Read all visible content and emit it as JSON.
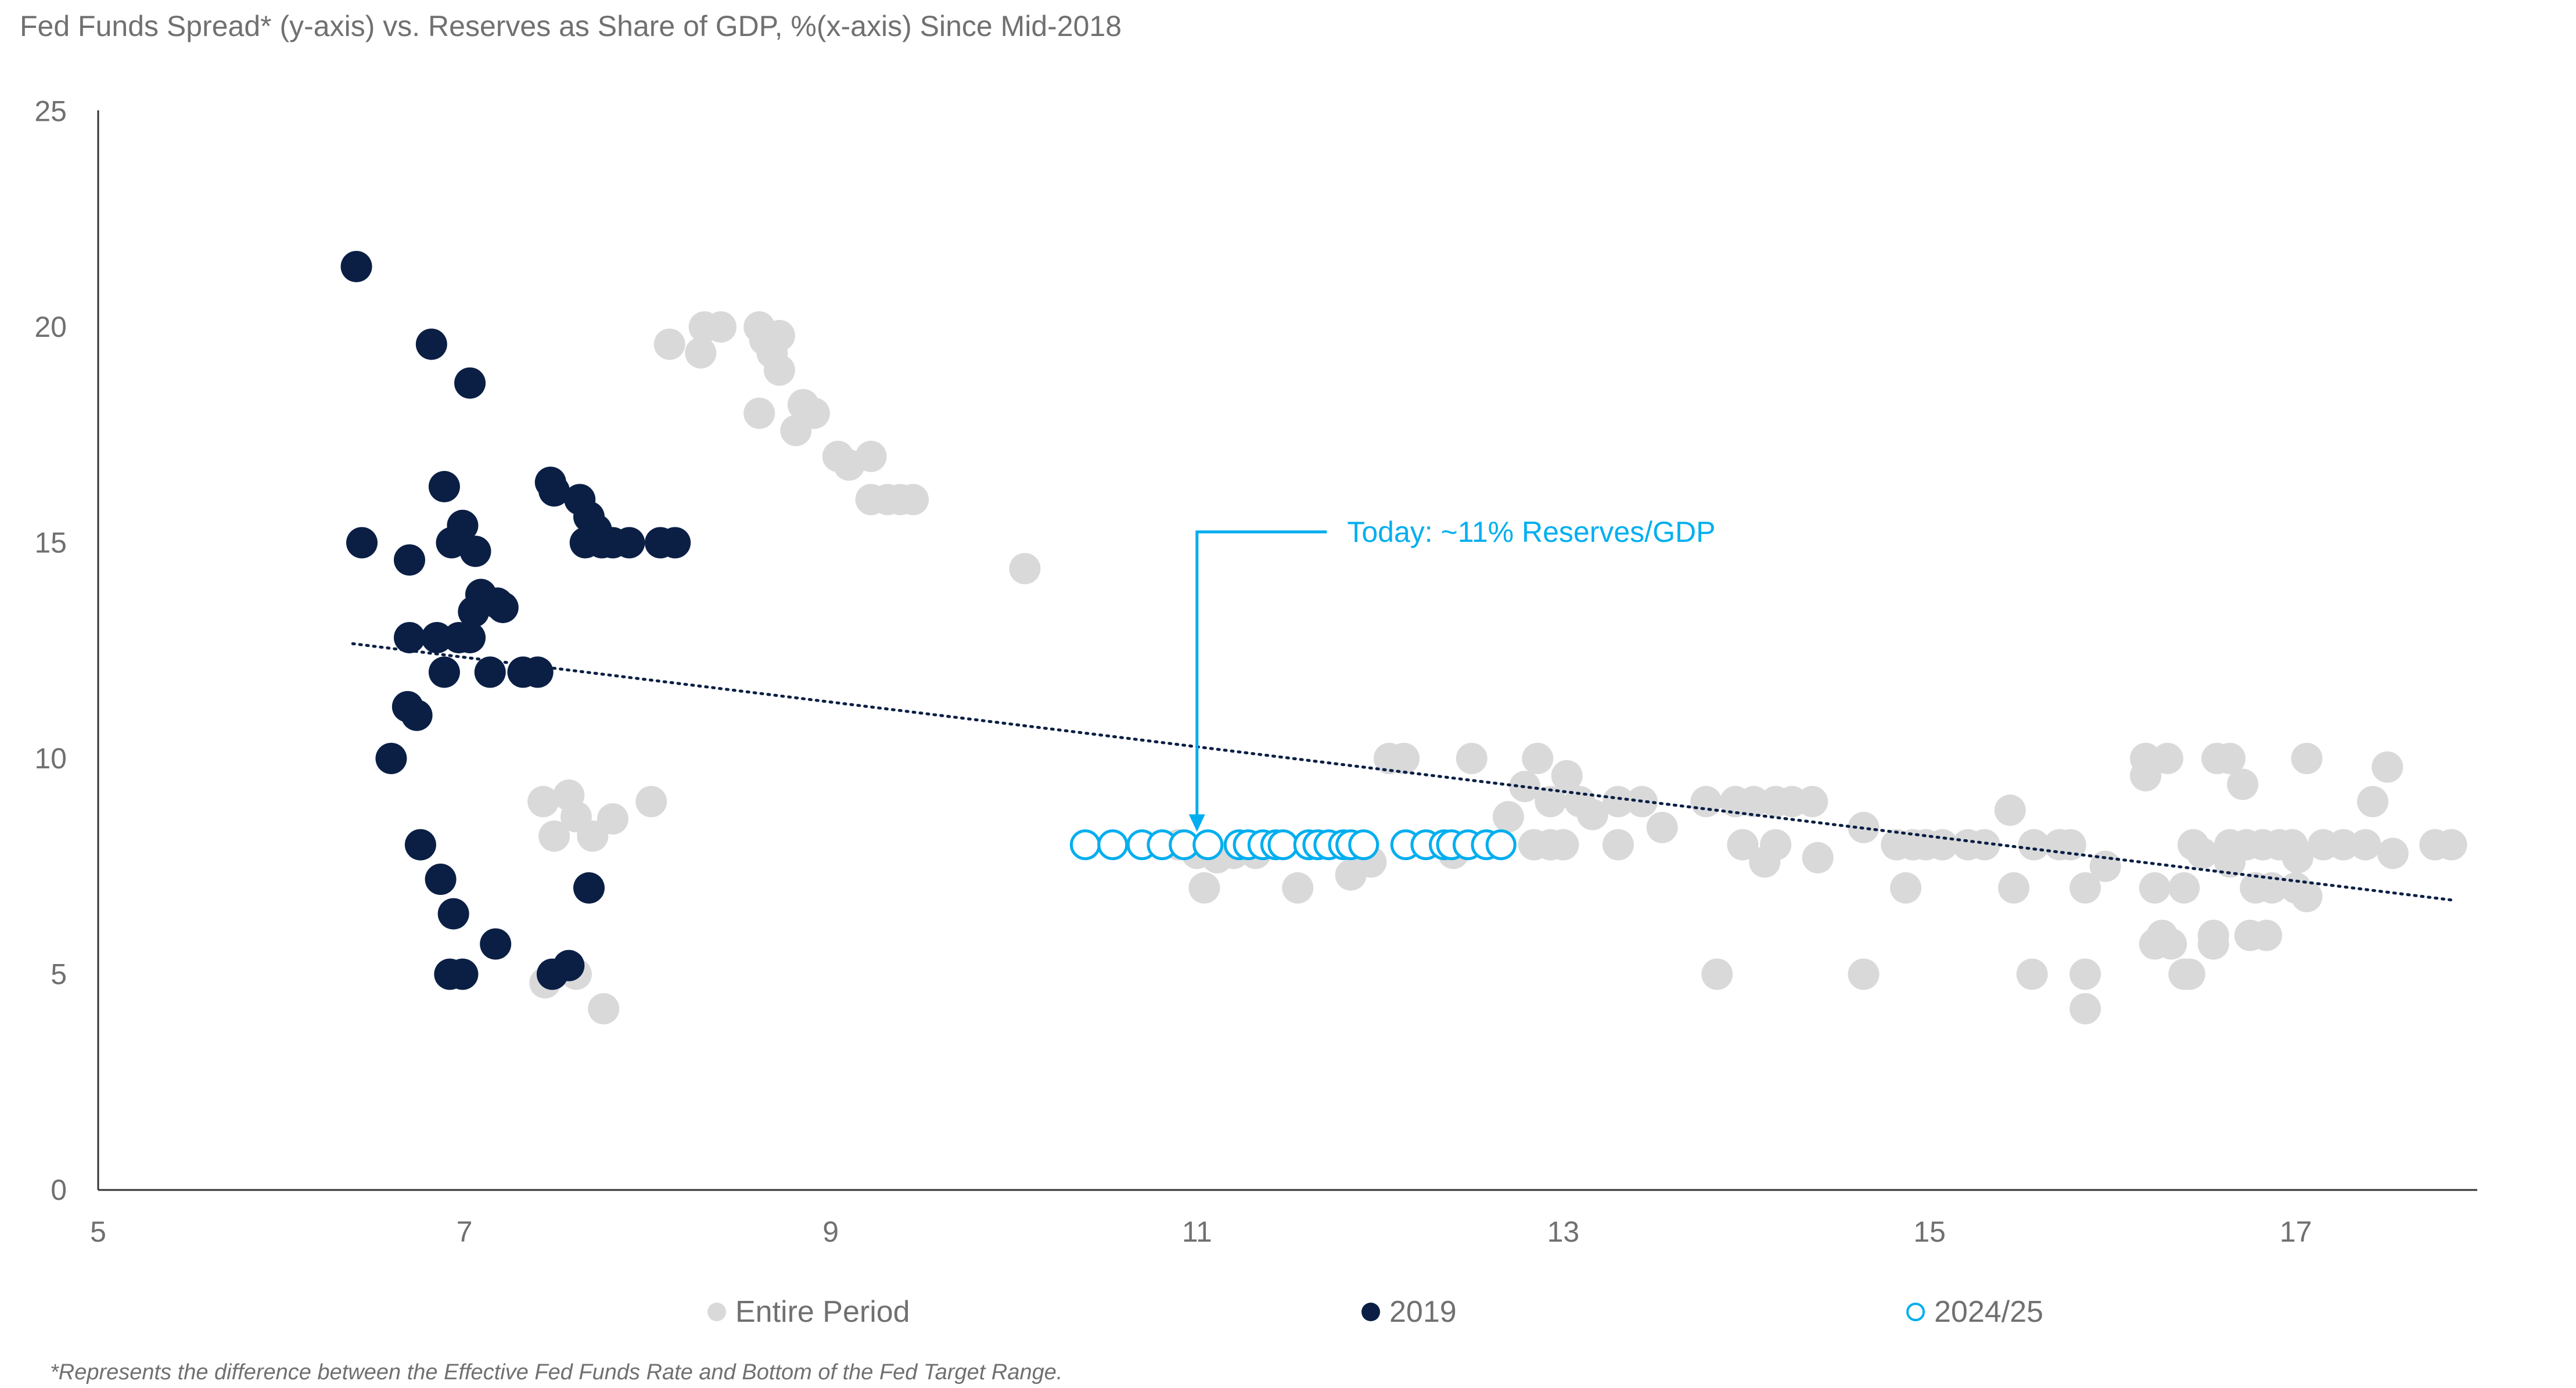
{
  "chart_data": {
    "type": "scatter",
    "title": "Fed Funds Spread* (y-axis) vs. Reserves as Share of GDP, %(x-axis) Since Mid-2018",
    "xlabel": "Reserves as Share of GDP, %",
    "ylabel": "Fed Funds Spread*",
    "xlim": [
      5,
      18
    ],
    "ylim": [
      0,
      25
    ],
    "x_ticks": [
      "5",
      "7",
      "9",
      "11",
      "13",
      "15",
      "17"
    ],
    "x_tick_values": [
      5,
      7,
      9,
      11,
      13,
      15,
      17
    ],
    "y_ticks": [
      "0",
      "5",
      "10",
      "15",
      "20",
      "25"
    ],
    "y_tick_values": [
      0,
      5,
      10,
      15,
      20,
      25
    ],
    "grid": false,
    "legend_position": "bottom",
    "colors": {
      "entire": "#d9d9d9",
      "y2019": "#0b1f45",
      "y2024": "#00aeef",
      "trend": "#0b1f45"
    },
    "series": [
      {
        "name": "Entire Period",
        "style": "filled",
        "points": [
          [
            8.12,
            19.6
          ],
          [
            8.29,
            19.4
          ],
          [
            8.31,
            20.0
          ],
          [
            8.4,
            20.0
          ],
          [
            8.61,
            20.0
          ],
          [
            8.64,
            19.7
          ],
          [
            8.72,
            19.8
          ],
          [
            8.68,
            19.4
          ],
          [
            8.72,
            19.0
          ],
          [
            8.61,
            18.0
          ],
          [
            8.85,
            18.2
          ],
          [
            8.91,
            18.0
          ],
          [
            8.81,
            17.6
          ],
          [
            9.04,
            17.0
          ],
          [
            9.1,
            16.8
          ],
          [
            9.22,
            17.0
          ],
          [
            9.22,
            16.0
          ],
          [
            9.31,
            16.0
          ],
          [
            9.38,
            16.0
          ],
          [
            9.45,
            16.0
          ],
          [
            10.06,
            14.4
          ],
          [
            7.9,
            15.0
          ],
          [
            7.43,
            9.0
          ],
          [
            7.57,
            9.15
          ],
          [
            7.61,
            8.65
          ],
          [
            7.49,
            8.2
          ],
          [
            7.7,
            8.2
          ],
          [
            7.81,
            8.6
          ],
          [
            8.02,
            9.0
          ],
          [
            7.44,
            4.8
          ],
          [
            7.61,
            5.0
          ],
          [
            7.76,
            4.2
          ],
          [
            10.9,
            8.0
          ],
          [
            11.0,
            7.8
          ],
          [
            11.04,
            7.0
          ],
          [
            11.11,
            7.7
          ],
          [
            11.2,
            7.8
          ],
          [
            11.32,
            7.8
          ],
          [
            11.55,
            7.0
          ],
          [
            11.84,
            7.3
          ],
          [
            11.95,
            7.6
          ],
          [
            12.05,
            10.0
          ],
          [
            12.13,
            10.0
          ],
          [
            12.4,
            7.8
          ],
          [
            12.5,
            10.0
          ],
          [
            12.7,
            8.65
          ],
          [
            12.79,
            9.35
          ],
          [
            12.86,
            10.0
          ],
          [
            12.93,
            9.0
          ],
          [
            13.02,
            9.6
          ],
          [
            13.09,
            9.0
          ],
          [
            13.16,
            8.7
          ],
          [
            13.3,
            9.0
          ],
          [
            13.43,
            9.0
          ],
          [
            13.54,
            8.4
          ],
          [
            12.84,
            8.0
          ],
          [
            12.93,
            8.0
          ],
          [
            13.0,
            8.0
          ],
          [
            13.3,
            8.0
          ],
          [
            13.78,
            9.0
          ],
          [
            13.94,
            9.0
          ],
          [
            14.04,
            9.0
          ],
          [
            14.16,
            9.0
          ],
          [
            14.25,
            9.0
          ],
          [
            14.36,
            9.0
          ],
          [
            13.84,
            5.0
          ],
          [
            13.98,
            8.0
          ],
          [
            14.1,
            7.6
          ],
          [
            14.16,
            8.0
          ],
          [
            14.39,
            7.7
          ],
          [
            14.64,
            8.4
          ],
          [
            14.64,
            5.0
          ],
          [
            14.82,
            8.0
          ],
          [
            14.91,
            8.0
          ],
          [
            14.98,
            8.0
          ],
          [
            15.07,
            8.0
          ],
          [
            15.21,
            8.0
          ],
          [
            15.3,
            8.0
          ],
          [
            14.87,
            7.0
          ],
          [
            15.44,
            8.8
          ],
          [
            15.46,
            7.0
          ],
          [
            15.57,
            8.0
          ],
          [
            15.71,
            8.0
          ],
          [
            15.77,
            8.0
          ],
          [
            15.56,
            5.0
          ],
          [
            15.85,
            7.0
          ],
          [
            15.85,
            5.0
          ],
          [
            15.85,
            4.2
          ],
          [
            15.96,
            7.5
          ],
          [
            16.18,
            10.0
          ],
          [
            16.3,
            10.0
          ],
          [
            16.18,
            9.6
          ],
          [
            16.23,
            7.0
          ],
          [
            16.27,
            5.9
          ],
          [
            16.23,
            5.7
          ],
          [
            16.32,
            5.7
          ],
          [
            16.39,
            7.0
          ],
          [
            16.39,
            5.0
          ],
          [
            16.42,
            5.0
          ],
          [
            16.44,
            8.0
          ],
          [
            16.49,
            7.8
          ],
          [
            16.55,
            5.9
          ],
          [
            16.55,
            5.7
          ],
          [
            16.57,
            10.0
          ],
          [
            16.64,
            10.0
          ],
          [
            16.64,
            8.0
          ],
          [
            16.73,
            8.0
          ],
          [
            16.82,
            8.0
          ],
          [
            16.91,
            8.0
          ],
          [
            16.98,
            8.0
          ],
          [
            16.64,
            7.6
          ],
          [
            16.71,
            9.4
          ],
          [
            16.75,
            5.9
          ],
          [
            16.84,
            5.9
          ],
          [
            16.78,
            7.0
          ],
          [
            16.87,
            7.0
          ],
          [
            17.01,
            7.7
          ],
          [
            17.06,
            10.0
          ],
          [
            17.06,
            6.8
          ],
          [
            17.0,
            7.0
          ],
          [
            17.15,
            8.0
          ],
          [
            17.26,
            8.0
          ],
          [
            17.38,
            8.0
          ],
          [
            17.42,
            9.0
          ],
          [
            17.5,
            9.8
          ],
          [
            17.53,
            7.8
          ],
          [
            17.76,
            8.0
          ],
          [
            17.85,
            8.0
          ]
        ]
      },
      {
        "name": "2019",
        "style": "filled",
        "points": [
          [
            6.41,
            21.4
          ],
          [
            6.44,
            15.0
          ],
          [
            6.82,
            19.6
          ],
          [
            7.03,
            18.7
          ],
          [
            6.89,
            16.3
          ],
          [
            6.7,
            14.6
          ],
          [
            6.99,
            15.4
          ],
          [
            6.93,
            15.0
          ],
          [
            7.06,
            14.8
          ],
          [
            7.09,
            13.8
          ],
          [
            7.18,
            13.6
          ],
          [
            7.21,
            13.5
          ],
          [
            7.05,
            13.4
          ],
          [
            6.7,
            12.8
          ],
          [
            6.85,
            12.8
          ],
          [
            6.97,
            12.8
          ],
          [
            7.03,
            12.8
          ],
          [
            6.89,
            12.0
          ],
          [
            7.14,
            12.0
          ],
          [
            7.32,
            12.0
          ],
          [
            7.4,
            12.0
          ],
          [
            6.69,
            11.2
          ],
          [
            6.74,
            11.0
          ],
          [
            6.6,
            10.0
          ],
          [
            6.76,
            8.0
          ],
          [
            6.87,
            7.2
          ],
          [
            6.94,
            6.4
          ],
          [
            7.17,
            5.7
          ],
          [
            6.92,
            5.0
          ],
          [
            6.99,
            5.0
          ],
          [
            7.48,
            5.0
          ],
          [
            7.57,
            5.2
          ],
          [
            7.68,
            7.0
          ],
          [
            7.47,
            16.4
          ],
          [
            7.49,
            16.2
          ],
          [
            7.63,
            16.0
          ],
          [
            7.68,
            15.6
          ],
          [
            7.72,
            15.3
          ],
          [
            7.66,
            15.0
          ],
          [
            7.75,
            15.0
          ],
          [
            7.81,
            15.0
          ],
          [
            7.9,
            15.0
          ],
          [
            8.07,
            15.0
          ],
          [
            8.15,
            15.0
          ]
        ]
      },
      {
        "name": "2024/25",
        "style": "open",
        "points": [
          [
            10.39,
            8.0
          ],
          [
            10.54,
            8.0
          ],
          [
            10.7,
            8.0
          ],
          [
            10.81,
            8.0
          ],
          [
            10.93,
            8.0
          ],
          [
            11.06,
            8.0
          ],
          [
            11.23,
            8.0
          ],
          [
            11.28,
            8.0
          ],
          [
            11.36,
            8.0
          ],
          [
            11.43,
            8.0
          ],
          [
            11.47,
            8.0
          ],
          [
            11.61,
            8.0
          ],
          [
            11.66,
            8.0
          ],
          [
            11.72,
            8.0
          ],
          [
            11.8,
            8.0
          ],
          [
            11.84,
            8.0
          ],
          [
            11.91,
            8.0
          ],
          [
            12.14,
            8.0
          ],
          [
            12.25,
            8.0
          ],
          [
            12.35,
            8.0
          ],
          [
            12.39,
            8.0
          ],
          [
            12.48,
            8.0
          ],
          [
            12.58,
            8.0
          ],
          [
            12.66,
            8.0
          ]
        ]
      }
    ],
    "trendline": {
      "style": "dotted",
      "from": [
        6.39,
        12.66
      ],
      "to": [
        17.85,
        6.72
      ]
    },
    "annotation": {
      "text": "Today: ~11% Reserves/GDP",
      "arrow_to": [
        11.0,
        8.3
      ],
      "arrow_from_y": 15.25,
      "text_x": 11.82
    },
    "footnote": "*Represents the difference between the Effective Fed Funds Rate and Bottom of the Fed Target Range."
  }
}
